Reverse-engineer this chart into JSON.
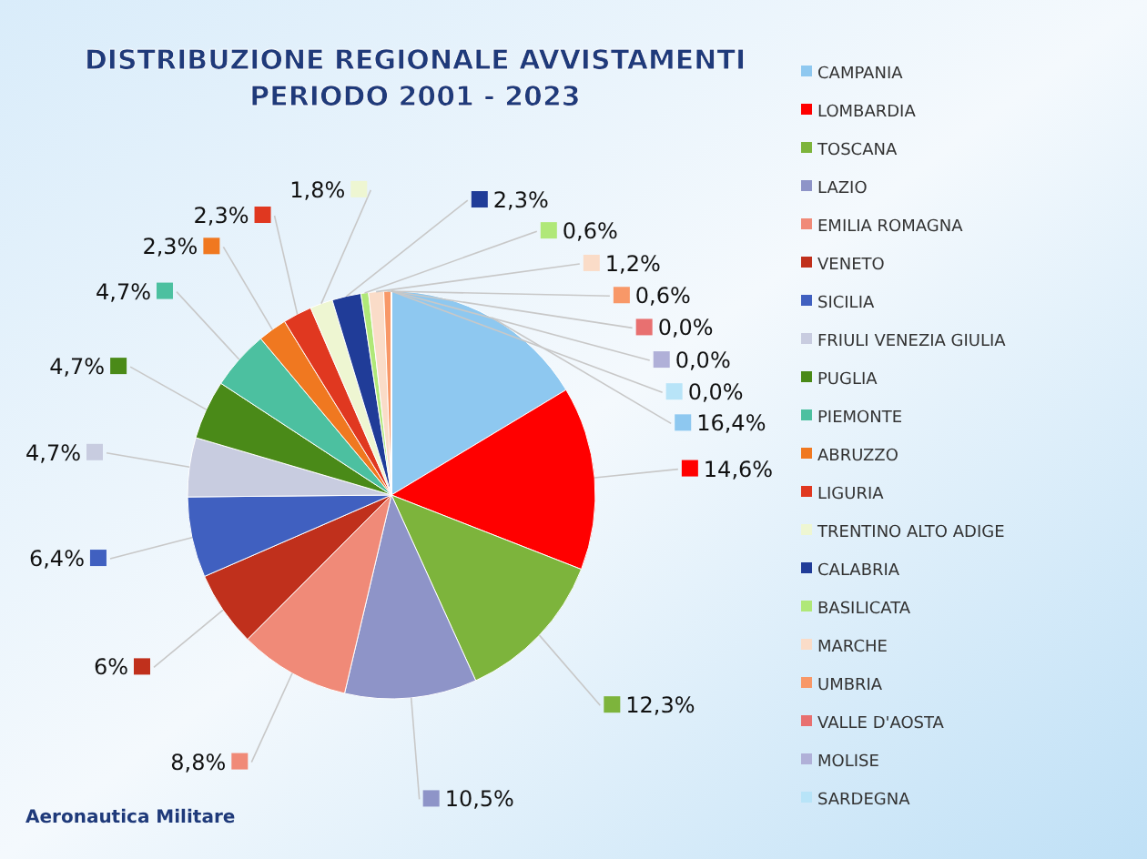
{
  "chart_data": {
    "type": "pie",
    "title": "DISTRIBUZIONE REGIONALE AVVISTAMENTI",
    "subtitle": "PERIODO 2001 - 2023",
    "categories": [
      "CAMPANIA",
      "LOMBARDIA",
      "TOSCANA",
      "LAZIO",
      "EMILIA ROMAGNA",
      "VENETO",
      "SICILIA",
      "FRIULI VENEZIA GIULIA",
      "PUGLIA",
      "PIEMONTE",
      "ABRUZZO",
      "LIGURIA",
      "TRENTINO ALTO ADIGE",
      "CALABRIA",
      "BASILICATA",
      "MARCHE",
      "UMBRIA",
      "VALLE D'AOSTA",
      "MOLISE",
      "SARDEGNA"
    ],
    "values": [
      16.4,
      14.6,
      12.3,
      10.5,
      8.8,
      6,
      6.4,
      4.7,
      4.7,
      4.7,
      2.3,
      2.3,
      1.8,
      2.3,
      0.6,
      1.2,
      0.6,
      0,
      0,
      0
    ],
    "value_labels": [
      "16,4%",
      "14,6%",
      "12,3%",
      "10,5%",
      "8,8%",
      "6%",
      "6,4%",
      "4,7%",
      "4,7%",
      "4,7%",
      "2,3%",
      "2,3%",
      "1,8%",
      "2,3%",
      "0,6%",
      "1,2%",
      "0,6%",
      "0,0%",
      "0,0%",
      "0,0%"
    ],
    "colors": [
      "#8ec8f0",
      "#ff0000",
      "#7db43c",
      "#8e94c8",
      "#f08a78",
      "#c0301c",
      "#4060c0",
      "#c8cce0",
      "#4a8a18",
      "#4cc0a0",
      "#f07820",
      "#e03820",
      "#eef6d2",
      "#203c98",
      "#b0e878",
      "#fadcc8",
      "#f89868",
      "#e87070",
      "#b0b0d8",
      "#b8e4f8"
    ],
    "legend": "right",
    "annotations": [
      "Aeronautica Militare"
    ]
  }
}
